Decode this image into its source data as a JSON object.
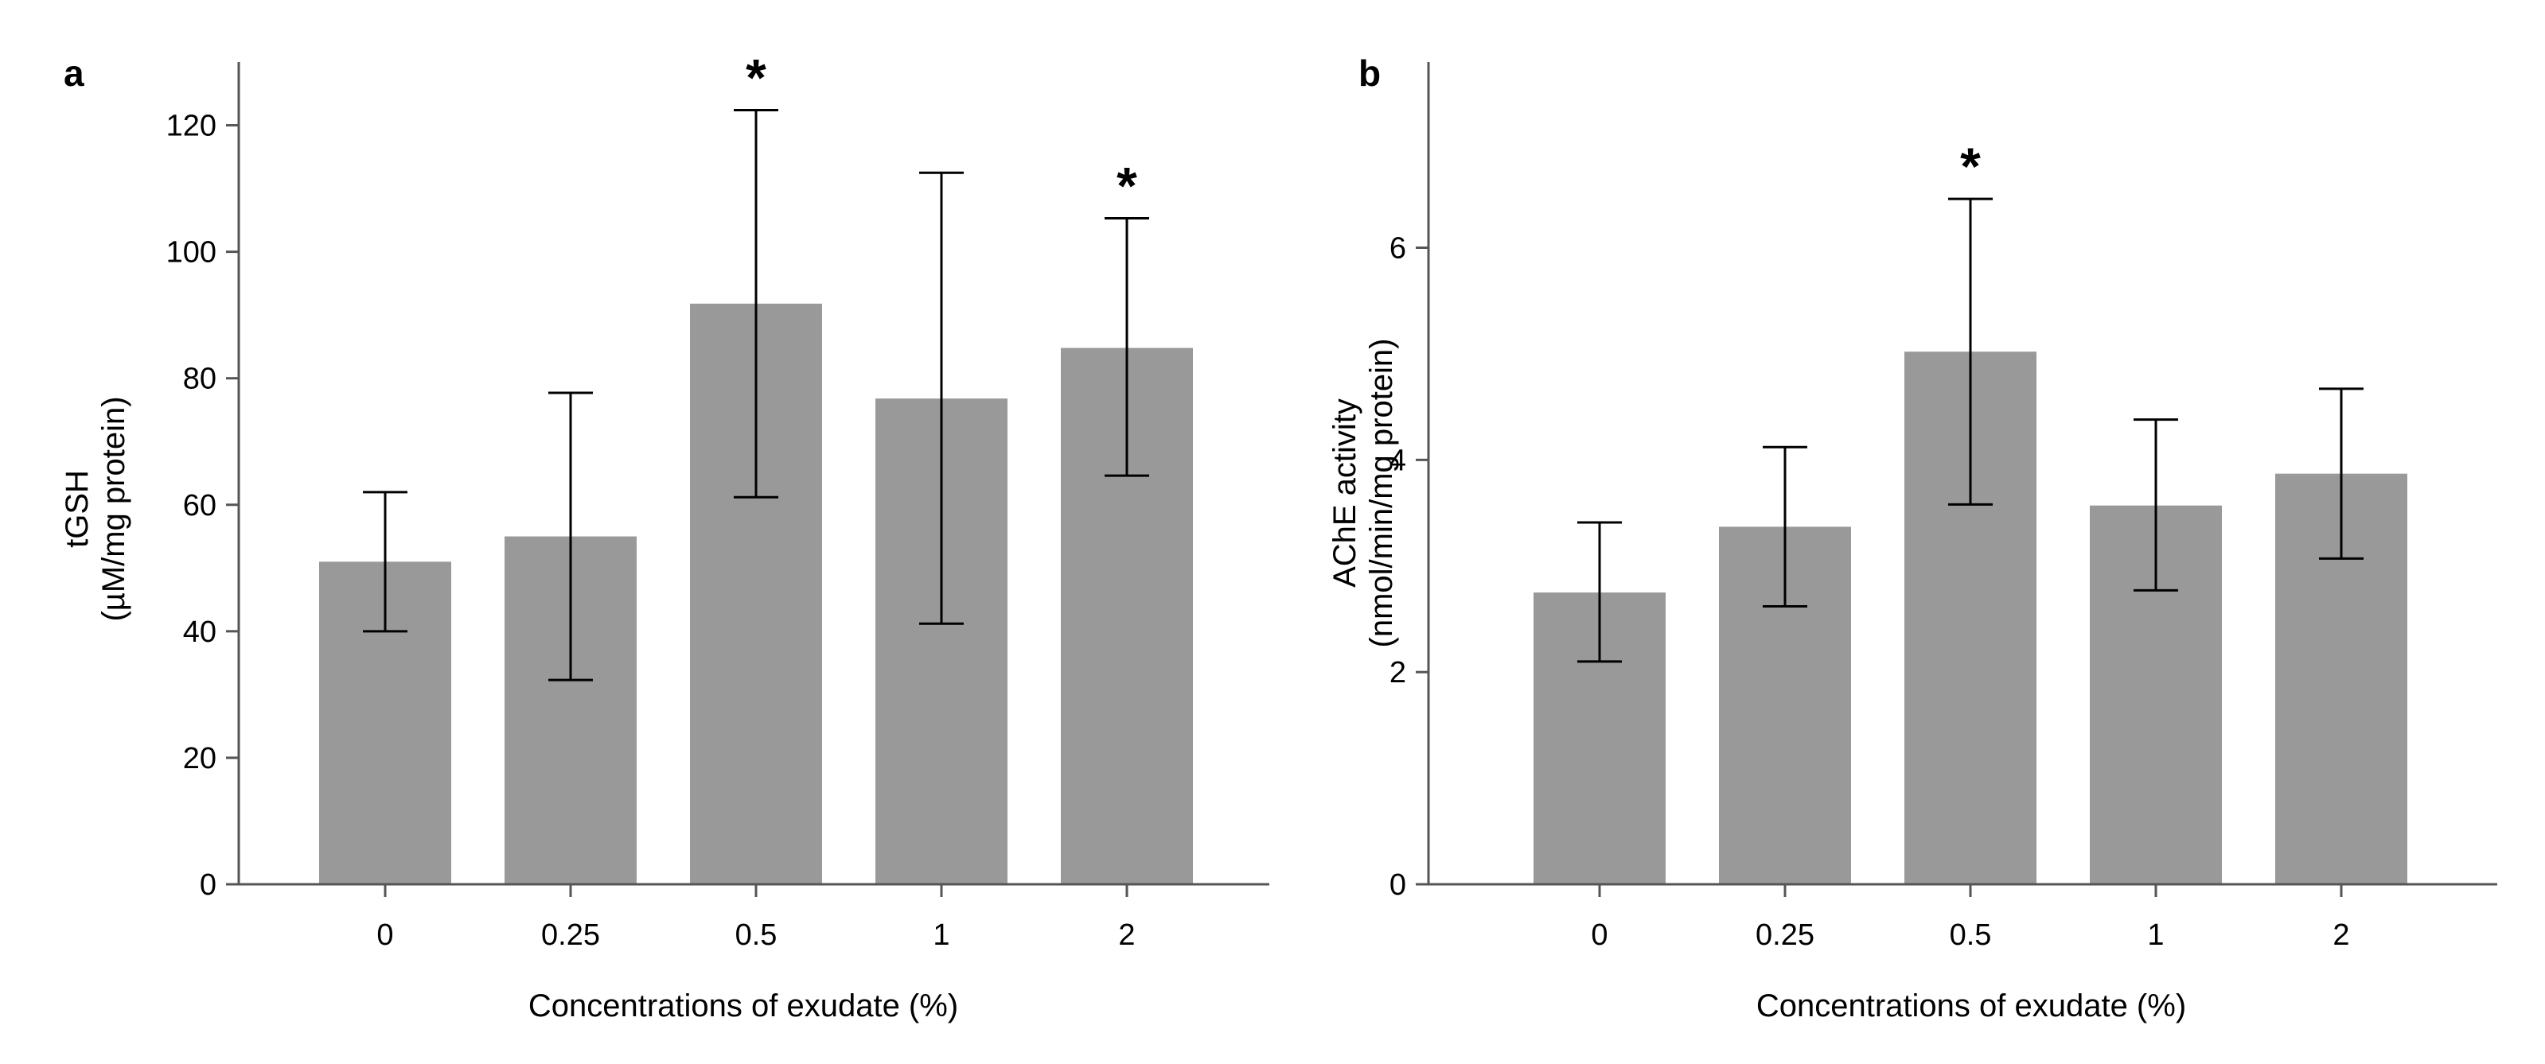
{
  "chart_data": [
    {
      "panel_label": "a",
      "type": "bar",
      "title": "",
      "categories": [
        "0",
        "0.25",
        "0.5",
        "1",
        "2"
      ],
      "values": [
        51,
        55,
        91.8,
        76.8,
        84.8
      ],
      "error_low": [
        40,
        32.3,
        61.2,
        41.2,
        64.6
      ],
      "error_high": [
        62,
        77.7,
        122.4,
        112.5,
        105.3
      ],
      "significant": [
        false,
        false,
        true,
        false,
        true
      ],
      "significance_marker": "*",
      "xlabel": "Concentrations of exudate (%)",
      "ylabel_line1": "tGSH",
      "ylabel_line2": "(µM/mg protein)",
      "ylim": [
        0,
        130
      ],
      "yticks": [
        0,
        20,
        40,
        60,
        80,
        100,
        120
      ],
      "bar_color": "#999999",
      "grid": false
    },
    {
      "panel_label": "b",
      "type": "bar",
      "title": "",
      "categories": [
        "0",
        "0.25",
        "0.5",
        "1",
        "2"
      ],
      "values": [
        2.75,
        3.37,
        5.02,
        3.57,
        3.87
      ],
      "error_low": [
        2.1,
        2.62,
        3.58,
        2.77,
        3.07
      ],
      "error_high": [
        3.41,
        4.12,
        6.46,
        4.38,
        4.67
      ],
      "significant": [
        false,
        false,
        true,
        false,
        false
      ],
      "significance_marker": "*",
      "xlabel": "Concentrations of exudate (%)",
      "ylabel_line1": "AChE activity",
      "ylabel_line2": "(nmol/min/mg protein)",
      "ylim": [
        0,
        7.75
      ],
      "yticks": [
        0,
        2,
        4,
        6
      ],
      "bar_color": "#999999",
      "grid": false
    }
  ]
}
